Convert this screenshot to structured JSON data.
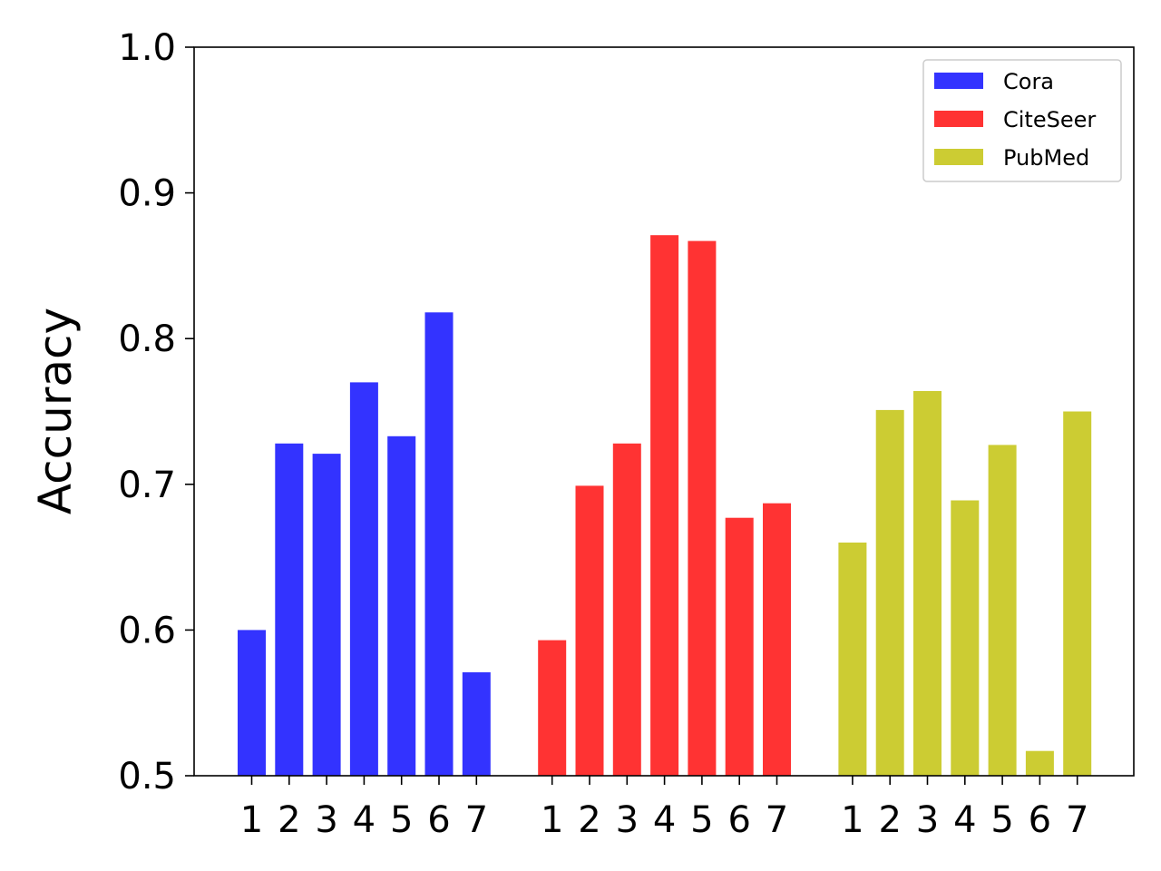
{
  "chart_data": {
    "type": "bar",
    "title": "",
    "xlabel": "",
    "ylabel": "Accuracy",
    "ylim": [
      0.5,
      1.0
    ],
    "yticks": [
      "0.5",
      "0.6",
      "0.7",
      "0.8",
      "0.9",
      "1.0"
    ],
    "categories": [
      "1",
      "2",
      "3",
      "4",
      "5",
      "6",
      "7"
    ],
    "grid": false,
    "legend_position": "top-right",
    "series": [
      {
        "name": "Cora",
        "color": "#3333ff",
        "values": [
          0.6,
          0.728,
          0.721,
          0.77,
          0.733,
          0.818,
          0.571
        ]
      },
      {
        "name": "CiteSeer",
        "color": "#ff3333",
        "values": [
          0.593,
          0.699,
          0.728,
          0.871,
          0.867,
          0.677,
          0.687
        ]
      },
      {
        "name": "PubMed",
        "color": "#cccc33",
        "values": [
          0.66,
          0.751,
          0.764,
          0.689,
          0.727,
          0.517,
          0.75
        ]
      }
    ]
  }
}
